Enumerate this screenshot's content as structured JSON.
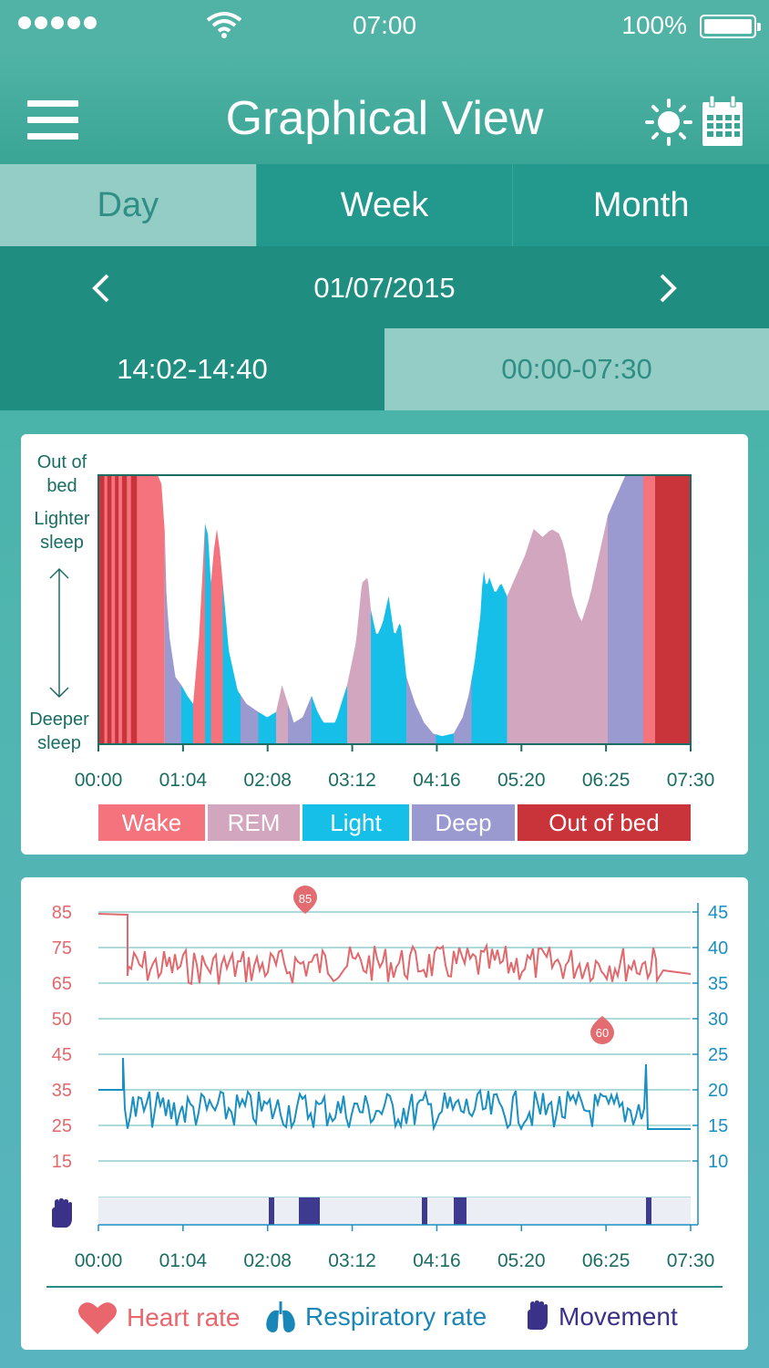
{
  "status": {
    "time": "07:00",
    "battery": "100%"
  },
  "header": {
    "title": "Graphical View",
    "menu_icon": "hamburger-icon",
    "sun_icon": "sun-icon",
    "calendar_icon": "calendar-icon"
  },
  "tabs": [
    {
      "label": "Day",
      "active": true
    },
    {
      "label": "Week",
      "active": false
    },
    {
      "label": "Month",
      "active": false
    }
  ],
  "date_nav": {
    "date": "01/07/2015"
  },
  "sessions": [
    {
      "label": "14:02-14:40",
      "selected": true
    },
    {
      "label": "00:00-07:30",
      "selected": false
    }
  ],
  "sleep_chart": {
    "y_labels": {
      "top": [
        "Out of",
        "bed"
      ],
      "mid": [
        "Lighter",
        "sleep"
      ],
      "bottom": [
        "Deeper",
        "sleep"
      ]
    },
    "x_ticks": [
      "00:00",
      "01:04",
      "02:08",
      "03:12",
      "04:16",
      "05:20",
      "06:25",
      "07:30"
    ],
    "legend": [
      "Wake",
      "REM",
      "Light",
      "Deep",
      "Out of bed"
    ],
    "colors": {
      "Wake": "#f4737d",
      "REM": "#d3a6bf",
      "Light": "#16bfe8",
      "Deep": "#9a9ad0",
      "Out of bed": "#c9333a"
    }
  },
  "vitals_chart": {
    "left_axis_labels": [
      "85",
      "75",
      "65",
      "50",
      "45",
      "35",
      "25",
      "15"
    ],
    "right_axis_labels": [
      "45",
      "40",
      "35",
      "30",
      "25",
      "20",
      "15",
      "10"
    ],
    "x_ticks": [
      "00:00",
      "01:04",
      "02:08",
      "03:12",
      "04:16",
      "05:20",
      "06:25",
      "07:30"
    ],
    "max_marker": "85",
    "min_marker": "60",
    "colors": {
      "heart": "#e0696d",
      "resp": "#1a8fc1",
      "movement": "#3e3a8f"
    }
  },
  "legend": [
    {
      "label": "Heart rate",
      "icon": "heart-icon",
      "color": "#e8666c"
    },
    {
      "label": "Respiratory rate",
      "icon": "lungs-icon",
      "color": "#1886b7"
    },
    {
      "label": "Movement",
      "icon": "hand-icon",
      "color": "#3a3188"
    }
  ]
}
